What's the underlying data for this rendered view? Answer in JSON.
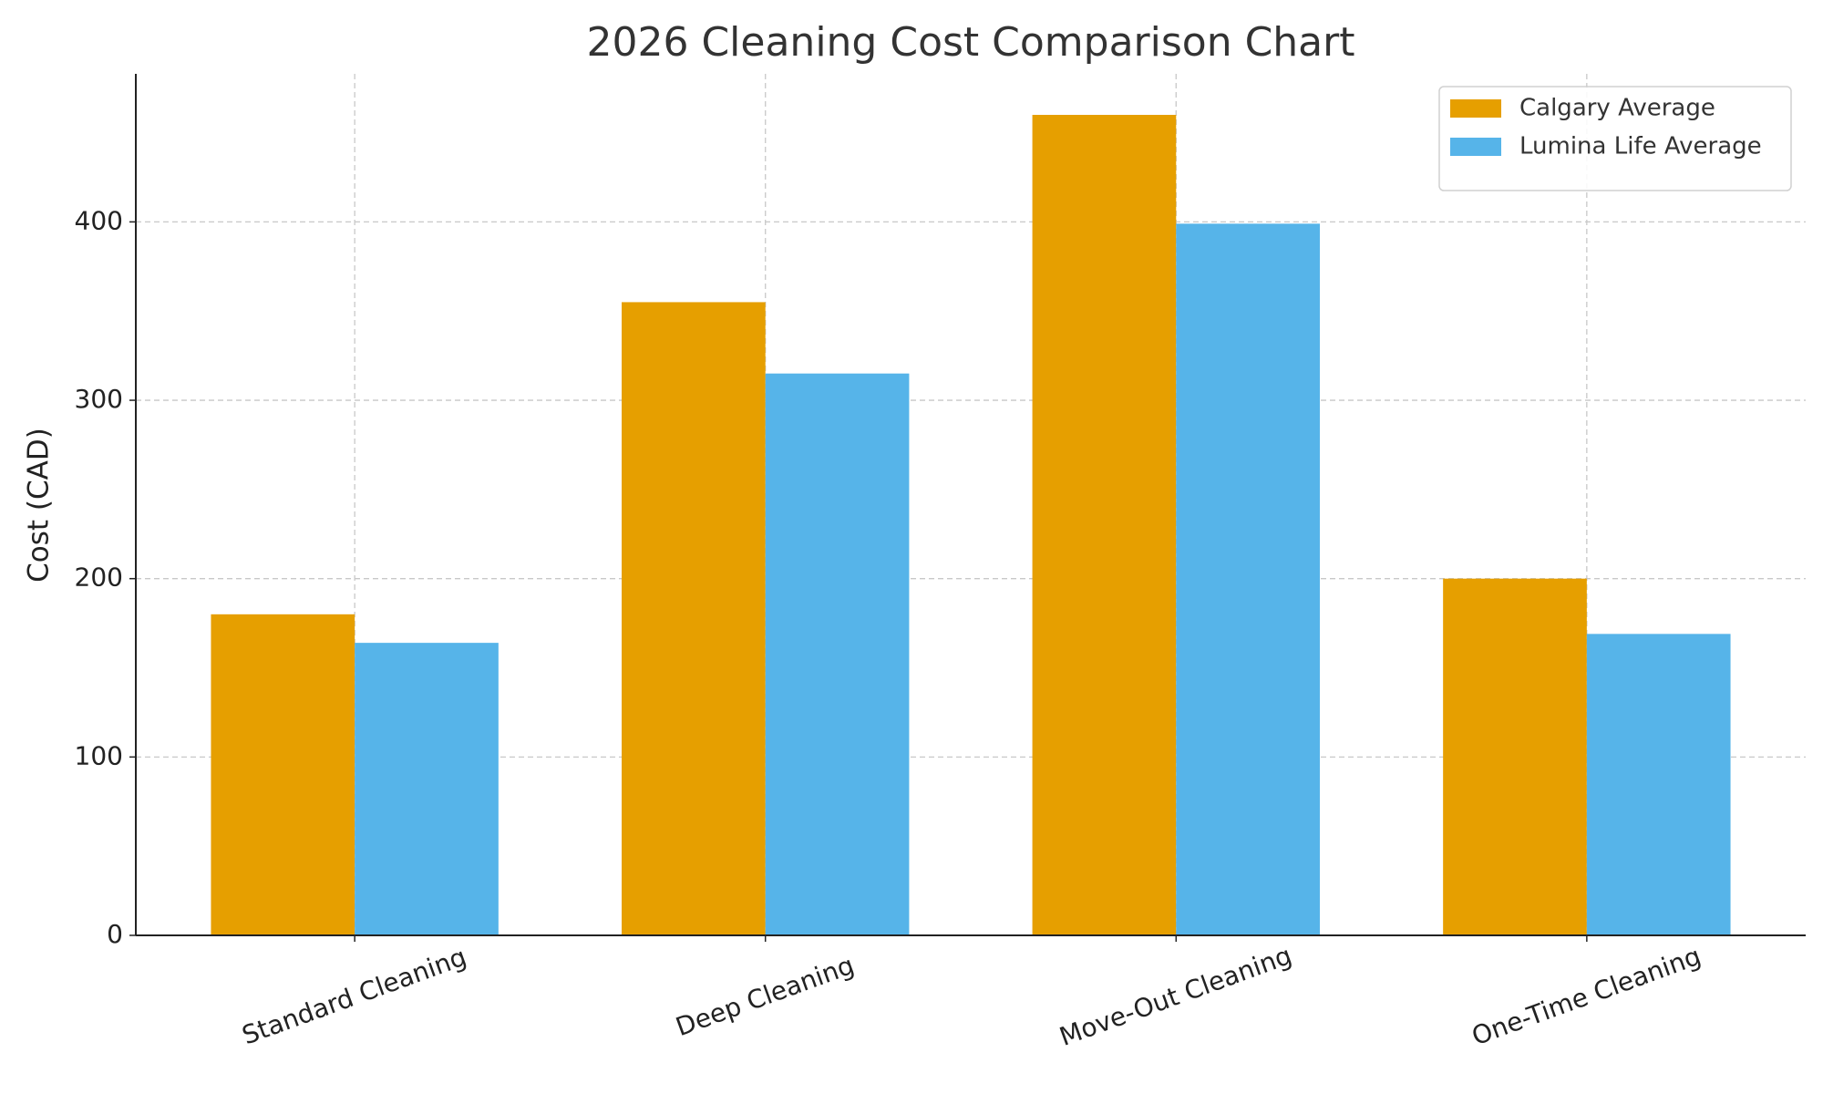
{
  "chart_data": {
    "type": "bar",
    "title": "2026 Cleaning Cost Comparison Chart",
    "y_label": "Cost (CAD)",
    "categories": [
      "Standard Cleaning",
      "Deep Cleaning",
      "Move-Out Cleaning",
      "One-Time Cleaning"
    ],
    "series": [
      {
        "name": "Calgary Average",
        "color": "#e69f00",
        "values": [
          180,
          355,
          460,
          200
        ]
      },
      {
        "name": "Lumina Life Average",
        "color": "#56b4e9",
        "values": [
          164,
          315,
          399,
          169
        ]
      }
    ],
    "ylim": [
      0,
      483
    ],
    "yticks": [
      0,
      100,
      200,
      300,
      400
    ],
    "grid": true,
    "legend": "upper right"
  }
}
